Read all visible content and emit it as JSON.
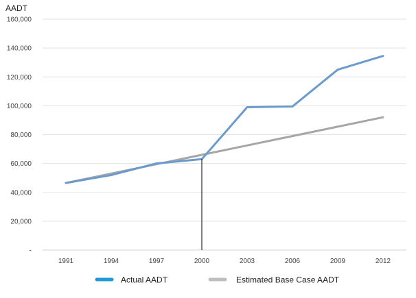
{
  "chart_data": {
    "type": "line",
    "ylabel": "AADT",
    "categories": [
      "1991",
      "1994",
      "1997",
      "2000",
      "2003",
      "2006",
      "2009",
      "2012"
    ],
    "y_tick_labels": [
      "-",
      "20,000",
      "40,000",
      "60,000",
      "80,000",
      "100,000",
      "120,000",
      "140,000",
      "160,000"
    ],
    "ylim": [
      0,
      160000
    ],
    "grid": "horizontal",
    "legend_position": "bottom",
    "marker_line_at": "2000",
    "series": [
      {
        "name": "Actual AADT",
        "color": "#6b9bcd",
        "legend_color": "#1e9ad6",
        "values": [
          46500,
          52000,
          60000,
          63000,
          99000,
          99500,
          125000,
          134500
        ]
      },
      {
        "name": "Estimated Base Case AADT",
        "color": "#a6a6a6",
        "legend_color": "#bfbfbf",
        "values": [
          46500,
          53000,
          59500,
          66000,
          72500,
          79000,
          85500,
          92000
        ]
      }
    ]
  }
}
